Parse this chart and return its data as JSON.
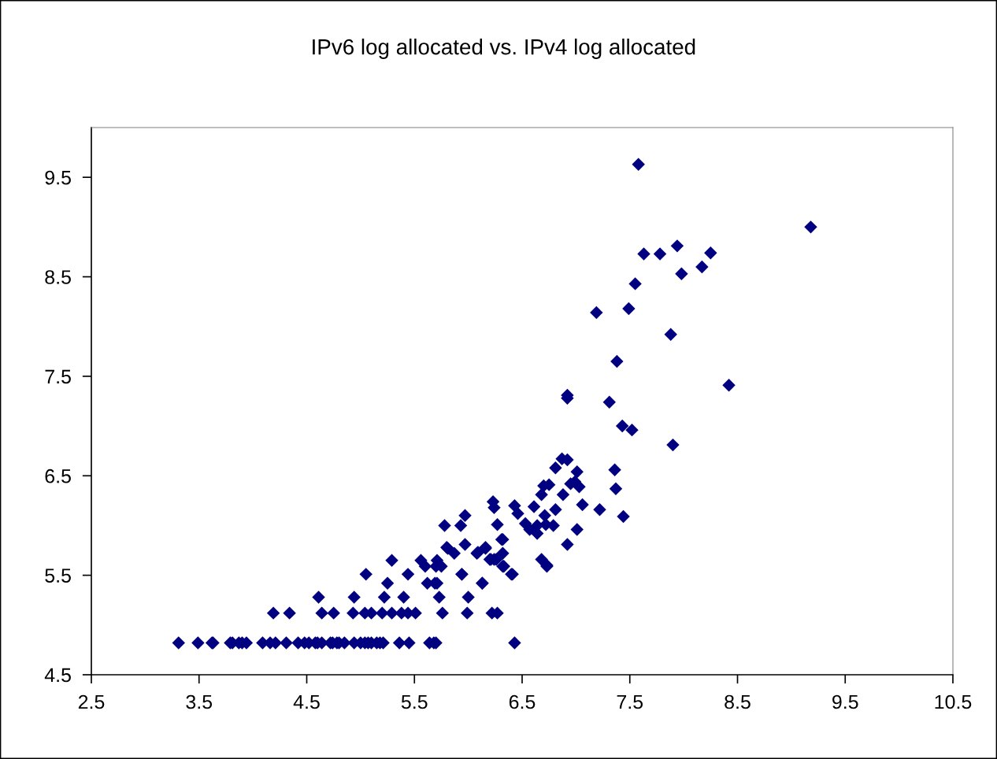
{
  "chart_data": {
    "type": "scatter",
    "title": "IPv6 log allocated vs. IPv4 log allocated",
    "x": [
      3.31,
      3.49,
      3.62,
      3.63,
      3.79,
      3.81,
      3.87,
      3.9,
      3.94,
      4.09,
      4.16,
      4.21,
      4.31,
      4.42,
      4.48,
      4.52,
      4.58,
      4.6,
      4.64,
      4.72,
      4.74,
      4.78,
      4.8,
      4.85,
      4.94,
      5.0,
      5.04,
      5.07,
      5.1,
      5.15,
      5.18,
      5.21,
      5.36,
      5.45,
      5.64,
      5.68,
      5.7,
      6.43,
      4.19,
      4.34,
      4.64,
      4.75,
      4.93,
      5.04,
      5.1,
      5.2,
      5.29,
      5.38,
      5.44,
      5.51,
      5.76,
      5.99,
      6.22,
      6.27,
      4.61,
      4.94,
      5.22,
      5.4,
      5.73,
      6.0,
      5.25,
      5.62,
      5.69,
      5.71,
      6.13,
      5.05,
      5.44,
      5.94,
      6.4,
      5.6,
      5.7,
      5.75,
      6.33,
      5.29,
      5.56,
      5.71,
      6.21,
      6.26,
      6.68,
      6.09,
      5.8,
      6.16,
      6.32,
      6.73,
      6.87,
      6.92,
      6.81,
      7.01,
      7.36,
      6.99,
      6.95,
      7.03,
      6.7,
      6.75,
      6.68,
      6.88,
      7.37,
      7.06,
      7.22,
      7.44,
      6.81,
      6.61,
      6.23,
      6.24,
      6.43,
      6.46,
      6.71,
      6.53,
      6.64,
      6.57,
      6.64,
      6.79,
      6.72,
      5.97,
      5.78,
      5.93,
      6.27,
      6.31,
      5.97,
      5.81,
      5.87,
      6.08,
      6.16,
      6.2,
      6.24,
      6.32,
      6.32,
      6.41,
      7.01,
      6.92,
      6.73,
      5.94,
      6.13,
      7.58,
      9.18,
      7.63,
      7.78,
      7.94,
      8.25,
      8.17,
      7.98,
      7.55,
      7.19,
      7.49,
      7.88,
      7.38,
      8.42,
      6.92,
      6.92,
      7.31,
      7.43,
      7.52,
      7.9
    ],
    "values": [
      4.82,
      4.82,
      4.82,
      4.82,
      4.82,
      4.82,
      4.82,
      4.82,
      4.82,
      4.82,
      4.82,
      4.82,
      4.82,
      4.82,
      4.82,
      4.82,
      4.82,
      4.82,
      4.82,
      4.82,
      4.82,
      4.82,
      4.82,
      4.82,
      4.82,
      4.82,
      4.82,
      4.82,
      4.82,
      4.82,
      4.82,
      4.82,
      4.82,
      4.82,
      4.82,
      4.82,
      4.82,
      4.82,
      5.12,
      5.12,
      5.12,
      5.12,
      5.12,
      5.12,
      5.12,
      5.12,
      5.12,
      5.12,
      5.12,
      5.12,
      5.12,
      5.12,
      5.12,
      5.12,
      5.28,
      5.28,
      5.28,
      5.28,
      5.28,
      5.28,
      5.42,
      5.42,
      5.42,
      5.42,
      5.42,
      5.51,
      5.51,
      5.51,
      5.51,
      5.59,
      5.59,
      5.59,
      5.59,
      5.65,
      5.65,
      5.65,
      5.66,
      5.66,
      5.66,
      5.73,
      5.78,
      5.78,
      5.86,
      5.6,
      6.67,
      6.66,
      6.58,
      6.54,
      6.56,
      6.44,
      6.42,
      6.39,
      6.4,
      6.41,
      6.31,
      6.31,
      6.37,
      6.21,
      6.16,
      6.09,
      6.16,
      6.19,
      6.24,
      6.18,
      6.2,
      6.12,
      6.1,
      6.02,
      6.0,
      5.96,
      5.92,
      6.0,
      6.01,
      6.1,
      6.0,
      6.0,
      6.01,
      5.86,
      5.81,
      5.77,
      5.72,
      5.72,
      5.77,
      5.66,
      5.66,
      5.72,
      5.59,
      5.51,
      5.96,
      5.81,
      5.59,
      5.51,
      5.42,
      9.63,
      9.0,
      8.73,
      8.73,
      8.81,
      8.74,
      8.6,
      8.53,
      8.43,
      8.14,
      8.18,
      7.92,
      7.65,
      7.41,
      7.31,
      7.28,
      7.24,
      7.0,
      6.96,
      6.81
    ],
    "color": "#000080",
    "marker": "diamond",
    "xlim": [
      2.5,
      10.5
    ],
    "ylim": [
      4.5,
      10.0
    ],
    "xticks": [
      2.5,
      3.5,
      4.5,
      5.5,
      6.5,
      7.5,
      8.5,
      9.5,
      10.5
    ],
    "yticks": [
      4.5,
      5.5,
      6.5,
      7.5,
      8.5,
      9.5
    ],
    "grid": false,
    "legend": false
  }
}
